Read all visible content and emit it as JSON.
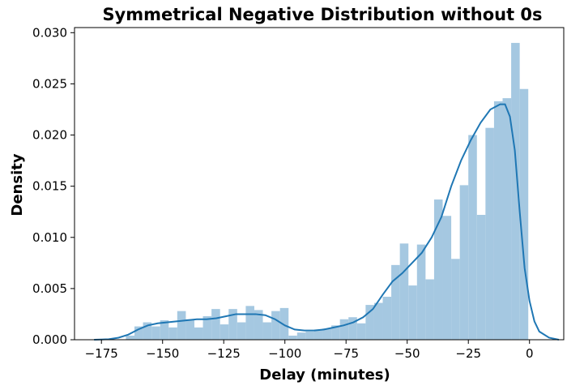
{
  "chart_data": {
    "type": "bar",
    "title": "Symmetrical Negative Distribution without 0s",
    "xlabel": "Delay (minutes)",
    "ylabel": "Density",
    "xlim": [
      -186,
      14
    ],
    "ylim": [
      0,
      0.0305
    ],
    "grid": false,
    "x_ticks": [
      -175,
      -150,
      -125,
      -100,
      -75,
      -50,
      -25,
      0
    ],
    "x_tick_labels": [
      "−175",
      "−150",
      "−125",
      "−100",
      "−75",
      "−50",
      "−25",
      "0"
    ],
    "y_ticks": [
      0,
      0.005,
      0.01,
      0.015,
      0.02,
      0.025,
      0.03
    ],
    "y_tick_labels": [
      "0.000",
      "0.005",
      "0.010",
      "0.015",
      "0.020",
      "0.025",
      "0.030"
    ],
    "hist_color": "#a5c8e1",
    "kde_color": "#1f77b4",
    "histogram": {
      "bin_width": 3.5,
      "bin_starts": [
        -165.0,
        -161.5,
        -158.0,
        -154.5,
        -151.0,
        -147.5,
        -144.0,
        -140.5,
        -137.0,
        -133.5,
        -130.0,
        -126.5,
        -123.0,
        -119.5,
        -116.0,
        -112.5,
        -109.0,
        -105.5,
        -102.0,
        -98.5,
        -95.0,
        -91.5,
        -88.0,
        -84.5,
        -81.0,
        -77.5,
        -74.0,
        -70.5,
        -67.0,
        -63.5,
        -60.0,
        -56.5,
        -53.0,
        -49.5,
        -46.0,
        -42.5,
        -39.0,
        -35.5,
        -32.0,
        -28.5,
        -25.0,
        -21.5,
        -18.0,
        -14.5,
        -11.0,
        -7.5,
        -4.0
      ],
      "densities": [
        0.0004,
        0.0013,
        0.0017,
        0.0013,
        0.0019,
        0.0012,
        0.0028,
        0.002,
        0.0012,
        0.0023,
        0.003,
        0.0015,
        0.003,
        0.0017,
        0.0033,
        0.0029,
        0.0017,
        0.0028,
        0.0031,
        0.0004,
        0.0007,
        0.0008,
        0.001,
        0.0011,
        0.0014,
        0.002,
        0.0022,
        0.0016,
        0.0034,
        0.0036,
        0.0042,
        0.0073,
        0.0094,
        0.0053,
        0.0093,
        0.0059,
        0.0137,
        0.0121,
        0.0079,
        0.0151,
        0.02,
        0.0122,
        0.0207,
        0.0233,
        0.0236,
        0.029,
        0.0245
      ]
    },
    "kde": {
      "x": [
        -178,
        -172,
        -168,
        -164,
        -160,
        -156,
        -152,
        -148,
        -144,
        -140,
        -136,
        -132,
        -128,
        -124,
        -120,
        -116,
        -112,
        -108,
        -104,
        -100,
        -96,
        -92,
        -88,
        -84,
        -80,
        -76,
        -72,
        -68,
        -64,
        -60,
        -56,
        -52,
        -48,
        -44,
        -40,
        -36,
        -32,
        -28,
        -24,
        -20,
        -16,
        -12,
        -10,
        -8,
        -6,
        -4,
        -2,
        0,
        2,
        4,
        8,
        12
      ],
      "y": [
        0.0,
        5e-05,
        0.0002,
        0.0005,
        0.001,
        0.0014,
        0.0016,
        0.0017,
        0.0018,
        0.0019,
        0.002,
        0.002,
        0.0021,
        0.0023,
        0.0025,
        0.0025,
        0.0025,
        0.0024,
        0.002,
        0.0014,
        0.001,
        0.0009,
        0.0009,
        0.001,
        0.0012,
        0.0014,
        0.0017,
        0.0022,
        0.003,
        0.0044,
        0.0057,
        0.0065,
        0.0075,
        0.0085,
        0.01,
        0.012,
        0.015,
        0.0175,
        0.0195,
        0.0212,
        0.0225,
        0.023,
        0.023,
        0.0218,
        0.0185,
        0.0125,
        0.007,
        0.0038,
        0.0018,
        0.0008,
        0.0002,
        0.0
      ]
    }
  }
}
